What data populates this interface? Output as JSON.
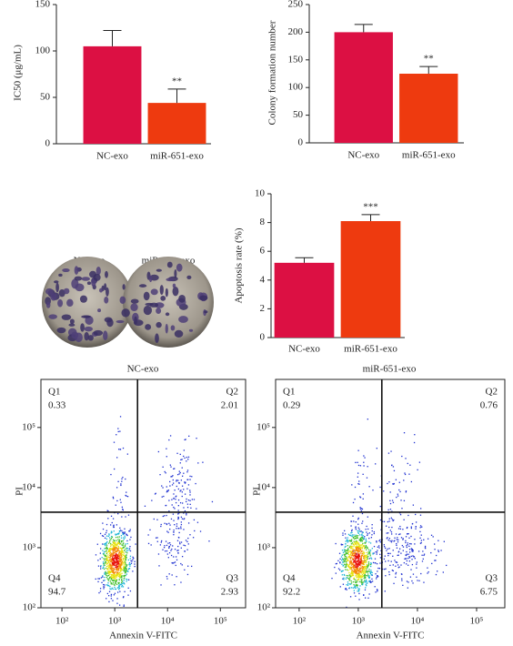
{
  "chart_data": [
    {
      "type": "bar",
      "ylabel": "IC50 (μg/mL)",
      "categories": [
        "NC-exo",
        "miR-651-exo"
      ],
      "values": [
        105,
        44
      ],
      "errors": [
        17,
        15
      ],
      "colors": [
        "#dc1043",
        "#ee3a0f"
      ],
      "significance": [
        null,
        "**"
      ],
      "ylim": [
        0,
        150
      ],
      "yticks": [
        0,
        50,
        100,
        150
      ]
    },
    {
      "type": "bar",
      "ylabel": "Colony formation number",
      "categories": [
        "NC-exo",
        "miR-651-exo"
      ],
      "values": [
        200,
        125
      ],
      "errors": [
        14,
        13
      ],
      "colors": [
        "#dc1043",
        "#ee3a0f"
      ],
      "significance": [
        null,
        "**"
      ],
      "ylim": [
        0,
        250
      ],
      "yticks": [
        0,
        50,
        100,
        150,
        200,
        250
      ]
    },
    {
      "type": "bar",
      "ylabel": "Apoptosis rate (%)",
      "categories": [
        "NC-exo",
        "miR-651-exo"
      ],
      "values": [
        5.2,
        8.1
      ],
      "errors": [
        0.35,
        0.45
      ],
      "colors": [
        "#dc1043",
        "#ee3a0f"
      ],
      "significance": [
        null,
        "***"
      ],
      "ylim": [
        0,
        10
      ],
      "yticks": [
        0,
        2,
        4,
        6,
        8,
        10
      ]
    },
    {
      "type": "scatter",
      "title": "NC-exo",
      "xlabel": "Annexin V-FITC",
      "ylabel": "PI",
      "xscale": "log",
      "yscale": "log",
      "xlim": [
        40,
        300000
      ],
      "ylim": [
        100,
        630000
      ],
      "xticks": [
        {
          "value": 100,
          "label": "10²"
        },
        {
          "value": 1000,
          "label": "10³"
        },
        {
          "value": 10000,
          "label": "10⁴"
        },
        {
          "value": 100000,
          "label": "10⁵"
        }
      ],
      "yticks": [
        {
          "value": 100,
          "label": "10²"
        },
        {
          "value": 1000,
          "label": "10³"
        },
        {
          "value": 10000,
          "label": "10⁴"
        },
        {
          "value": 100000,
          "label": "10⁵"
        }
      ],
      "gate_x": 2700,
      "gate_y": 3900,
      "quadrants": [
        {
          "name": "Q1",
          "value": 0.33
        },
        {
          "name": "Q2",
          "value": 2.01
        },
        {
          "name": "Q3",
          "value": 2.93
        },
        {
          "name": "Q4",
          "value": 94.7
        }
      ]
    },
    {
      "type": "scatter",
      "title": "miR-651-exo",
      "xlabel": "Annexin V-FITC",
      "ylabel": "PI",
      "xscale": "log",
      "yscale": "log",
      "xlim": [
        40,
        300000
      ],
      "ylim": [
        100,
        630000
      ],
      "xticks": [
        {
          "value": 100,
          "label": "10²"
        },
        {
          "value": 1000,
          "label": "10³"
        },
        {
          "value": 10000,
          "label": "10⁴"
        },
        {
          "value": 100000,
          "label": "10⁵"
        }
      ],
      "yticks": [
        {
          "value": 100,
          "label": "10²"
        },
        {
          "value": 1000,
          "label": "10³"
        },
        {
          "value": 10000,
          "label": "10⁴"
        },
        {
          "value": 100000,
          "label": "10⁵"
        }
      ],
      "gate_x": 2500,
      "gate_y": 3900,
      "quadrants": [
        {
          "name": "Q1",
          "value": 0.29
        },
        {
          "name": "Q2",
          "value": 0.76
        },
        {
          "name": "Q3",
          "value": 6.75
        },
        {
          "name": "Q4",
          "value": 92.2
        }
      ]
    }
  ],
  "plate_photo": {
    "labels": [
      "NC-exo",
      "miR-651-exo"
    ]
  }
}
